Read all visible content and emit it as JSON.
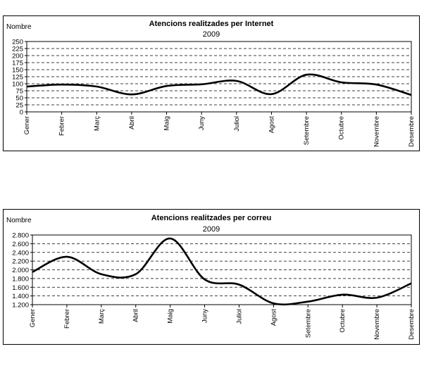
{
  "chart_data": [
    {
      "type": "line",
      "title": "Atencions realitzades per Internet",
      "subtitle": "2009",
      "ylabel": "Nombre",
      "xlabel": "",
      "categories": [
        "Gener",
        "Febrer",
        "Març",
        "Abril",
        "Maig",
        "Juny",
        "Juliol",
        "Agost",
        "Setembre",
        "Octubre",
        "Novembre",
        "Desembre"
      ],
      "values": [
        90,
        97,
        90,
        62,
        92,
        98,
        110,
        63,
        132,
        105,
        97,
        60
      ],
      "ylim": [
        0,
        250
      ],
      "yticks": [
        "0",
        "25",
        "50",
        "75",
        "100",
        "125",
        "150",
        "175",
        "200",
        "225",
        "250"
      ],
      "grid": true,
      "line_color": "#000000"
    },
    {
      "type": "line",
      "title": "Atencions realitzades per correu",
      "subtitle": "2009",
      "ylabel": "Nombre",
      "xlabel": "",
      "categories": [
        "Gener",
        "Febrer",
        "Març",
        "Abril",
        "Maig",
        "Juny",
        "Juliol",
        "Agost",
        "Setembre",
        "Octubre",
        "Novembre",
        "Desembre"
      ],
      "values": [
        1950,
        2300,
        1900,
        1900,
        2720,
        1780,
        1660,
        1230,
        1270,
        1430,
        1360,
        1690
      ],
      "ylim": [
        1200,
        2800
      ],
      "yticks": [
        "1.200",
        "1.400",
        "1.600",
        "1.800",
        "2.000",
        "2.200",
        "2.400",
        "2.600",
        "2.800"
      ],
      "grid": true,
      "line_color": "#000000"
    }
  ]
}
